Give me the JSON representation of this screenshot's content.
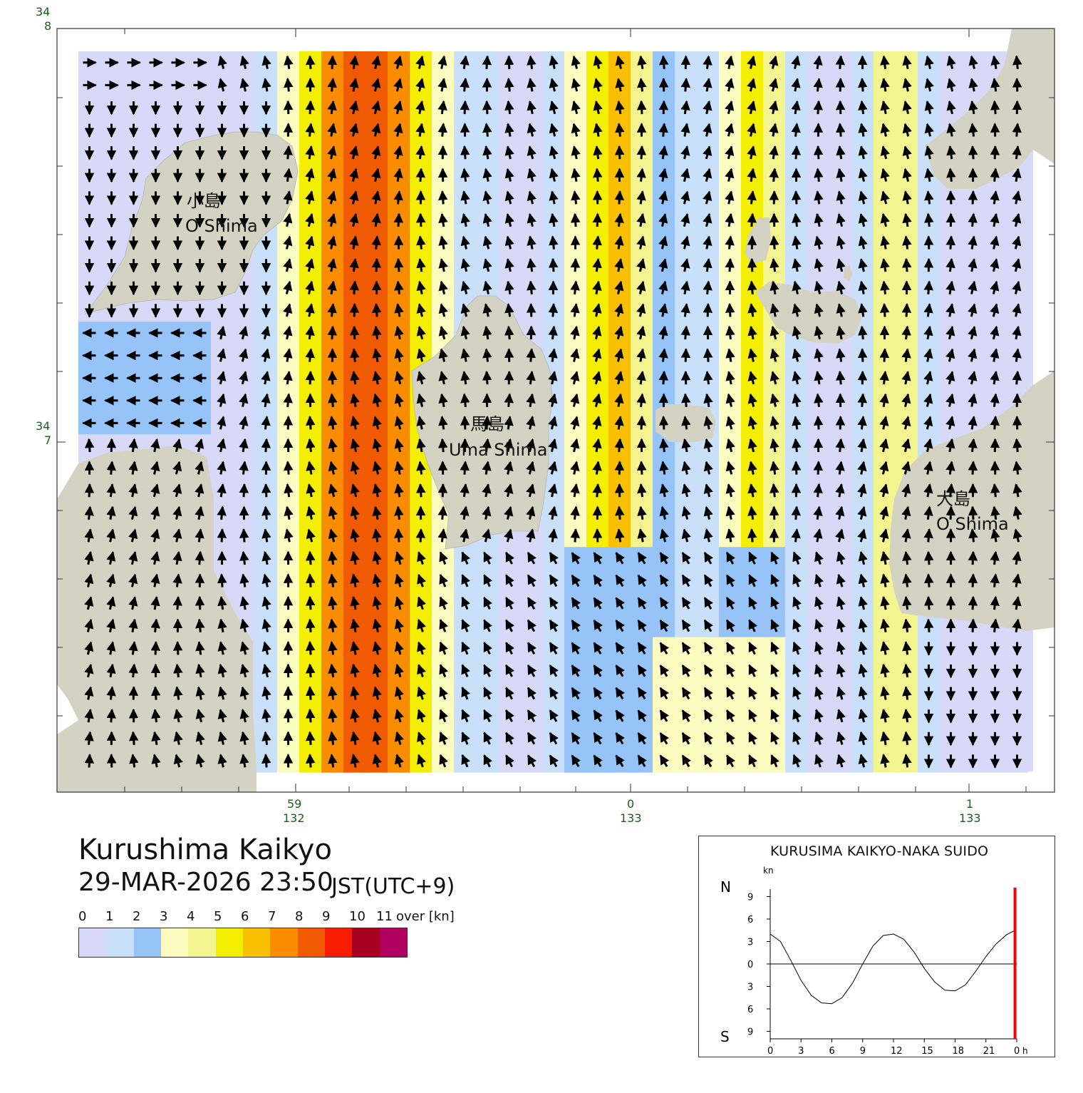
{
  "map": {
    "top_lat_deg": "34",
    "top_lat_min": "8",
    "mid_lat_deg": "34",
    "mid_lat_min": "7",
    "lon_labels": [
      {
        "min": "59",
        "deg": "132"
      },
      {
        "min": "0",
        "deg": "133"
      },
      {
        "min": "1",
        "deg": "133"
      }
    ],
    "islands": [
      {
        "jp": "小島",
        "en": "O Shima"
      },
      {
        "jp": "馬島",
        "en": "Uma Shima"
      },
      {
        "jp": "大島",
        "en": "O Shima"
      }
    ],
    "colors": {
      "water": "#d8d8f8",
      "land": "#d4d3c3",
      "arrow": "#000000"
    }
  },
  "title": {
    "station": "Kurushima Kaikyo",
    "datetime": "29-MAR-2026 23:50",
    "timezone": "JST(UTC+9)"
  },
  "legend": {
    "ticks": [
      "0",
      "1",
      "2",
      "3",
      "4",
      "5",
      "6",
      "7",
      "8",
      "9",
      "10",
      "11"
    ],
    "over_label": "over [kn]",
    "colors": [
      "#d8d8f8",
      "#c8e0fa",
      "#96c4f8",
      "#fcfcc0",
      "#f4f490",
      "#f4ee00",
      "#f8c000",
      "#fa8c00",
      "#f05a00",
      "#f81c00",
      "#a80020",
      "#b00060"
    ]
  },
  "graph": {
    "title": "KURUSIMA KAIKYO-NAKA SUIDO",
    "unit": "kn",
    "north_label": "N",
    "south_label": "S",
    "y_ticks": [
      "9",
      "6",
      "3",
      "0",
      "3",
      "6",
      "9"
    ],
    "x_ticks": [
      "0",
      "3",
      "6",
      "9",
      "12",
      "15",
      "18",
      "21",
      "0"
    ],
    "x_unit": "h",
    "marker_color": "#ff0000"
  },
  "chart_data": {
    "type": "line",
    "title": "KURUSIMA KAIKYO-NAKA SUIDO",
    "ylabel": "kn",
    "x": [
      0,
      1,
      2,
      3,
      4,
      5,
      6,
      7,
      8,
      9,
      10,
      11,
      12,
      13,
      14,
      15,
      16,
      17,
      18,
      19,
      20,
      21,
      22,
      23,
      23.83
    ],
    "values": [
      4.0,
      3.0,
      0.5,
      -2.2,
      -4.2,
      -5.2,
      -5.3,
      -4.5,
      -2.6,
      0.0,
      2.4,
      3.8,
      4.0,
      3.3,
      1.6,
      -0.6,
      -2.4,
      -3.5,
      -3.6,
      -2.8,
      -1.0,
      1.0,
      2.7,
      3.9,
      4.5
    ],
    "xlim": [
      0,
      24
    ],
    "ylim": [
      -10,
      10
    ],
    "current_time_h": 23.83
  }
}
